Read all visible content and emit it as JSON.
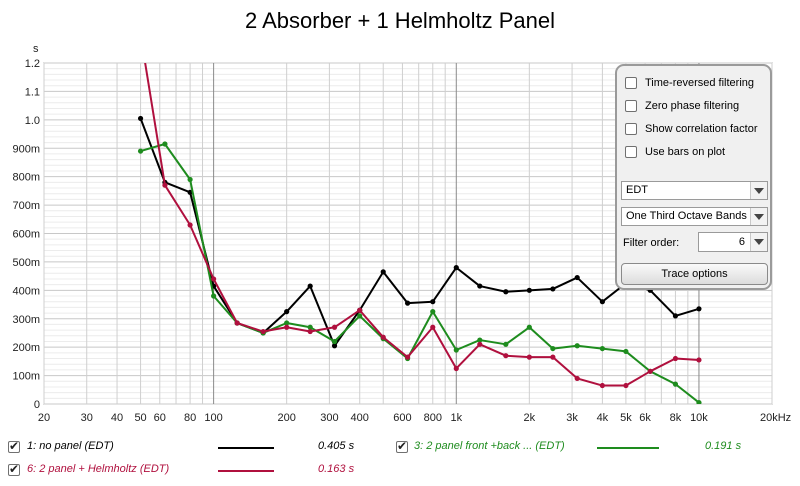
{
  "chart_data": {
    "type": "line",
    "title": "2 Absorber + 1 Helmholtz Panel",
    "ylabel": "s",
    "xlabel": "",
    "x_unit": "Hz",
    "x_scale": "log",
    "xlim": [
      20,
      20000
    ],
    "ylim": [
      0,
      1.2
    ],
    "x_tick_values": [
      20,
      30,
      40,
      50,
      60,
      70,
      80,
      90,
      100,
      200,
      300,
      400,
      500,
      600,
      700,
      800,
      900,
      1000,
      2000,
      3000,
      4000,
      5000,
      6000,
      7000,
      8000,
      9000,
      10000,
      20000
    ],
    "x_tick_labels": [
      {
        "v": 20,
        "t": "20"
      },
      {
        "v": 30,
        "t": "30"
      },
      {
        "v": 40,
        "t": "40"
      },
      {
        "v": 50,
        "t": "50"
      },
      {
        "v": 60,
        "t": "60"
      },
      {
        "v": 80,
        "t": "80"
      },
      {
        "v": 100,
        "t": "100"
      },
      {
        "v": 200,
        "t": "200"
      },
      {
        "v": 300,
        "t": "300"
      },
      {
        "v": 400,
        "t": "400"
      },
      {
        "v": 600,
        "t": "600"
      },
      {
        "v": 800,
        "t": "800"
      },
      {
        "v": 1000,
        "t": "1k"
      },
      {
        "v": 2000,
        "t": "2k"
      },
      {
        "v": 3000,
        "t": "3k"
      },
      {
        "v": 4000,
        "t": "4k"
      },
      {
        "v": 5000,
        "t": "5k"
      },
      {
        "v": 6000,
        "t": "6k"
      },
      {
        "v": 8000,
        "t": "8k"
      },
      {
        "v": 10000,
        "t": "10k"
      },
      {
        "v": 20000,
        "t": "20kHz"
      }
    ],
    "y_tick_labels": [
      {
        "v": 0,
        "t": "0"
      },
      {
        "v": 0.1,
        "t": "100m"
      },
      {
        "v": 0.2,
        "t": "200m"
      },
      {
        "v": 0.3,
        "t": "300m"
      },
      {
        "v": 0.4,
        "t": "400m"
      },
      {
        "v": 0.5,
        "t": "500m"
      },
      {
        "v": 0.6,
        "t": "600m"
      },
      {
        "v": 0.7,
        "t": "700m"
      },
      {
        "v": 0.8,
        "t": "800m"
      },
      {
        "v": 0.9,
        "t": "900m"
      },
      {
        "v": 1.0,
        "t": "1.0"
      },
      {
        "v": 1.1,
        "t": "1.1"
      },
      {
        "v": 1.2,
        "t": "1.2"
      }
    ],
    "grid": true,
    "legend_position": "bottom",
    "series": [
      {
        "name": "1: no panel (EDT)",
        "color": "#000000",
        "summary": "0.405 s",
        "x": [
          50,
          63,
          80,
          100,
          125,
          160,
          200,
          250,
          315,
          400,
          500,
          630,
          800,
          1000,
          1250,
          1600,
          2000,
          2500,
          3150,
          4000,
          5000,
          6300,
          8000,
          10000
        ],
        "y": [
          1.005,
          0.78,
          0.745,
          0.415,
          0.285,
          0.25,
          0.325,
          0.415,
          0.205,
          0.33,
          0.465,
          0.355,
          0.36,
          0.48,
          0.415,
          0.395,
          0.4,
          0.405,
          0.445,
          0.36,
          0.425,
          0.4,
          0.31,
          0.335
        ]
      },
      {
        "name": "3: 2 panel front +back ... (EDT)",
        "color": "#1e8c1e",
        "summary": "0.191 s",
        "x": [
          50,
          63,
          80,
          100,
          125,
          160,
          200,
          250,
          315,
          400,
          500,
          630,
          800,
          1000,
          1250,
          1600,
          2000,
          2500,
          3150,
          4000,
          5000,
          6300,
          8000,
          10000
        ],
        "y": [
          0.89,
          0.915,
          0.79,
          0.38,
          0.285,
          0.25,
          0.285,
          0.27,
          0.22,
          0.31,
          0.23,
          0.16,
          0.325,
          0.19,
          0.225,
          0.21,
          0.27,
          0.195,
          0.205,
          0.195,
          0.185,
          0.115,
          0.07,
          0.005
        ]
      },
      {
        "name": "6: 2 panel + Helmholtz (EDT)",
        "color": "#b0103e",
        "summary": "0.163 s",
        "x": [
          63,
          80,
          100,
          125,
          160,
          200,
          250,
          315,
          400,
          500,
          630,
          800,
          1000,
          1250,
          1600,
          2000,
          2500,
          3150,
          4000,
          5000,
          6300,
          8000,
          10000
        ],
        "y": [
          0.77,
          0.63,
          0.44,
          0.285,
          0.255,
          0.27,
          0.255,
          0.27,
          0.33,
          0.235,
          0.165,
          0.27,
          0.125,
          0.21,
          0.17,
          0.165,
          0.165,
          0.09,
          0.065,
          0.065,
          0.115,
          0.16,
          0.155
        ],
        "pre_segment": {
          "x": [
            50,
            63
          ],
          "y": [
            1.3,
            0.77
          ]
        }
      }
    ]
  },
  "options_panel": {
    "checkboxes": [
      {
        "label": "Time-reversed filtering"
      },
      {
        "label": "Zero phase filtering"
      },
      {
        "label": "Show correlation factor"
      },
      {
        "label": "Use bars on plot"
      }
    ],
    "metric_select": "EDT",
    "band_select": "One Third Octave Bands",
    "filter_order_label": "Filter order:",
    "filter_order_value": "6",
    "trace_options_label": "Trace options"
  },
  "legend": [
    {
      "label": "1: no panel (EDT)",
      "value": "0.405 s",
      "color": "#000000",
      "label_color": "#000000"
    },
    {
      "label": "3: 2 panel front +back ... (EDT)",
      "value": "0.191 s",
      "color": "#1e8c1e",
      "label_color": "#1e8c1e"
    },
    {
      "label": "6: 2 panel + Helmholtz (EDT)",
      "value": "0.163 s",
      "color": "#b0103e",
      "label_color": "#b0103e"
    }
  ]
}
